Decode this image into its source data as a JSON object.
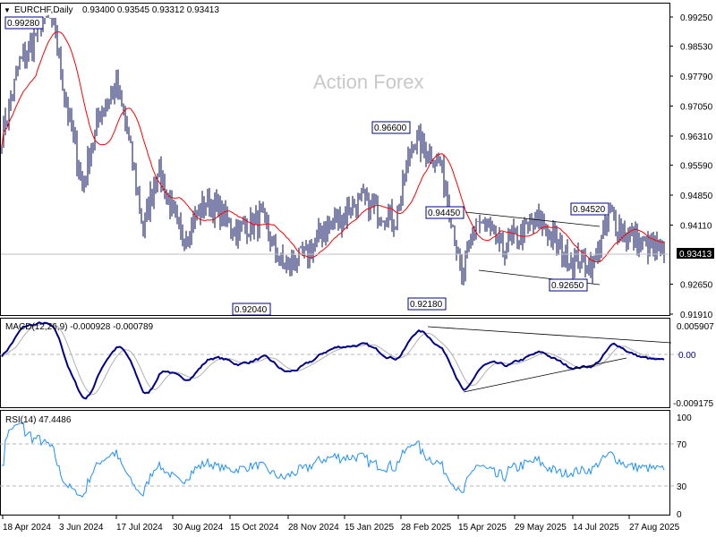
{
  "header": {
    "symbol_label": "EURCHF,Daily",
    "ohlc": "0.93400 0.93545 0.93312 0.93413"
  },
  "watermark": "Action Forex",
  "chart_data": {
    "type": "ohlc",
    "title": "EURCHF,Daily",
    "x_unit": "trading day index",
    "price_axis": {
      "ticks": [
        "0.99250",
        "0.98530",
        "0.97790",
        "0.97050",
        "0.96310",
        "0.95590",
        "0.94850",
        "0.94110",
        "0.93413",
        "0.92650",
        "0.91910"
      ],
      "range": [
        0.9191,
        0.9925
      ]
    },
    "last_price": "0.93413",
    "close_keypoints": [
      [
        0,
        0.9635
      ],
      [
        5,
        0.972
      ],
      [
        10,
        0.9812
      ],
      [
        16,
        0.985
      ],
      [
        22,
        0.9912
      ],
      [
        26,
        0.9925
      ],
      [
        30,
        0.989
      ],
      [
        35,
        0.9733
      ],
      [
        45,
        0.9512
      ],
      [
        55,
        0.969
      ],
      [
        64,
        0.9756
      ],
      [
        70,
        0.9645
      ],
      [
        79,
        0.94
      ],
      [
        87,
        0.9557
      ],
      [
        100,
        0.938
      ],
      [
        115,
        0.947
      ],
      [
        130,
        0.94
      ],
      [
        145,
        0.9425
      ],
      [
        157,
        0.931
      ],
      [
        170,
        0.9333
      ],
      [
        180,
        0.94
      ],
      [
        200,
        0.947
      ],
      [
        220,
        0.9425
      ],
      [
        230,
        0.9626
      ],
      [
        245,
        0.956
      ],
      [
        250,
        0.947
      ],
      [
        257,
        0.927
      ],
      [
        265,
        0.9425
      ],
      [
        280,
        0.9355
      ],
      [
        300,
        0.9425
      ],
      [
        315,
        0.9333
      ],
      [
        330,
        0.931
      ],
      [
        340,
        0.9436
      ],
      [
        350,
        0.938
      ],
      [
        370,
        0.9341
      ]
    ],
    "annotations": [
      "0.99280",
      "0.96600",
      "0.94450",
      "0.94520",
      "0.92040",
      "0.92180",
      "0.92650"
    ],
    "moving_average": {
      "type": "SMA",
      "period": 20,
      "color": "#ff0000"
    },
    "x_tick_labels": [
      "18 Apr 2024",
      "3 Jun 2024",
      "17 Jul 2024",
      "30 Aug 2024",
      "15 Oct 2024",
      "28 Nov 2024",
      "15 Jan 2025",
      "28 Feb 2025",
      "15 Apr 2025",
      "29 May 2025",
      "14 Jul 2025",
      "27 Aug 2025"
    ],
    "macd": {
      "label": "MACD(12,26,9) -0.000928 -0.000789",
      "ticks": [
        "0.005907",
        "0.00",
        "-0.009175"
      ],
      "range": [
        -0.009175,
        0.005907
      ],
      "color": "#00008b",
      "signal_color": "#b0b0b0"
    },
    "rsi": {
      "label": "RSI(14) 47.4486",
      "ticks": [
        "100",
        "70",
        "30",
        "0"
      ],
      "range": [
        0,
        100
      ],
      "levels": [
        30,
        70
      ],
      "color": "#1e90ff"
    }
  }
}
